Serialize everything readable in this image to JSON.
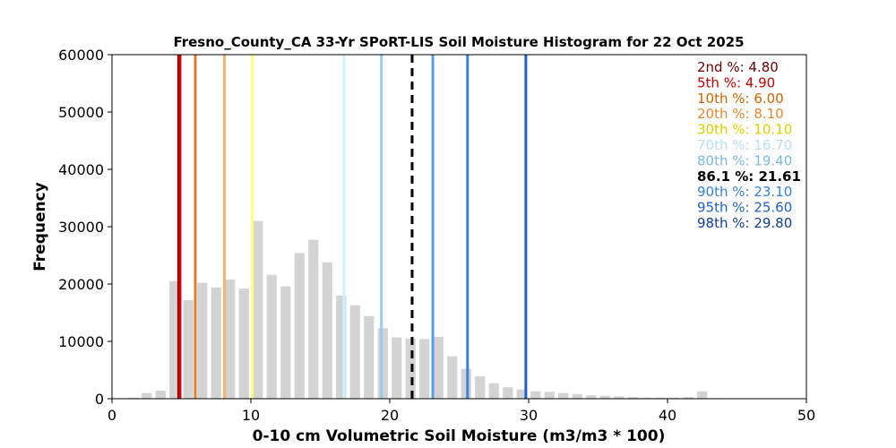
{
  "chart_data": {
    "type": "bar",
    "title": "Fresno_County_CA 33-Yr SPoRT-LIS Soil Moisture Histogram for 22 Oct 2025",
    "xlabel": "0-10 cm Volumetric Soil Moisture (m3/m3 * 100)",
    "ylabel": "Frequency",
    "xlim": [
      0,
      50
    ],
    "ylim": [
      0,
      60000
    ],
    "x_ticks": [
      "0",
      "10",
      "20",
      "30",
      "40",
      "50"
    ],
    "y_ticks": [
      "0",
      "10000",
      "20000",
      "30000",
      "40000",
      "50000",
      "60000"
    ],
    "bar_color": "#d3d3d3",
    "bins": [
      {
        "x": 1.5,
        "value": 200
      },
      {
        "x": 2.5,
        "value": 1000
      },
      {
        "x": 3.5,
        "value": 1400
      },
      {
        "x": 4.5,
        "value": 20500
      },
      {
        "x": 5.5,
        "value": 17200
      },
      {
        "x": 6.5,
        "value": 20200
      },
      {
        "x": 7.5,
        "value": 19400
      },
      {
        "x": 8.5,
        "value": 20800
      },
      {
        "x": 9.5,
        "value": 19200
      },
      {
        "x": 10.5,
        "value": 31000
      },
      {
        "x": 11.5,
        "value": 21600
      },
      {
        "x": 12.5,
        "value": 19600
      },
      {
        "x": 13.5,
        "value": 25400
      },
      {
        "x": 14.5,
        "value": 27700
      },
      {
        "x": 15.5,
        "value": 23800
      },
      {
        "x": 16.5,
        "value": 18000
      },
      {
        "x": 17.5,
        "value": 16300
      },
      {
        "x": 18.5,
        "value": 14400
      },
      {
        "x": 19.5,
        "value": 12300
      },
      {
        "x": 20.5,
        "value": 10700
      },
      {
        "x": 21.5,
        "value": 10500
      },
      {
        "x": 22.5,
        "value": 10400
      },
      {
        "x": 23.5,
        "value": 10800
      },
      {
        "x": 24.5,
        "value": 7400
      },
      {
        "x": 25.5,
        "value": 5200
      },
      {
        "x": 26.5,
        "value": 3900
      },
      {
        "x": 27.5,
        "value": 2700
      },
      {
        "x": 28.5,
        "value": 2000
      },
      {
        "x": 29.5,
        "value": 1600
      },
      {
        "x": 30.5,
        "value": 1300
      },
      {
        "x": 31.5,
        "value": 1200
      },
      {
        "x": 32.5,
        "value": 1000
      },
      {
        "x": 33.5,
        "value": 800
      },
      {
        "x": 34.5,
        "value": 600
      },
      {
        "x": 35.5,
        "value": 500
      },
      {
        "x": 36.5,
        "value": 400
      },
      {
        "x": 37.5,
        "value": 300
      },
      {
        "x": 38.5,
        "value": 200
      },
      {
        "x": 39.5,
        "value": 200
      },
      {
        "x": 40.5,
        "value": 200
      },
      {
        "x": 41.5,
        "value": 300
      },
      {
        "x": 42.5,
        "value": 1300
      },
      {
        "x": 43.5,
        "value": 100
      }
    ],
    "percentiles": [
      {
        "label": "2nd %: 4.80",
        "value": 4.8,
        "color": "#6b0000",
        "line_color": "#8b0000"
      },
      {
        "label": "5th %: 4.90",
        "value": 4.9,
        "color": "#c00000",
        "line_color": "#d40000"
      },
      {
        "label": "10th %: 6.00",
        "value": 6.0,
        "color": "#c86400",
        "line_color": "#e07b28"
      },
      {
        "label": "20th %: 8.10",
        "value": 8.1,
        "color": "#e08a30",
        "line_color": "#f5b070"
      },
      {
        "label": "30th %: 10.10",
        "value": 10.1,
        "color": "#d8d000",
        "line_color": "#ffff80"
      },
      {
        "label": "70th %: 16.70",
        "value": 16.7,
        "color": "#b8e0f0",
        "line_color": "#c8f4ff"
      },
      {
        "label": "80th %: 19.40",
        "value": 19.4,
        "color": "#7fb8e0",
        "line_color": "#9ccbea"
      },
      {
        "label": "90th %: 23.10",
        "value": 23.1,
        "color": "#3a7fd0",
        "line_color": "#5a9de0"
      },
      {
        "label": "95th %: 25.60",
        "value": 25.6,
        "color": "#1f62c0",
        "line_color": "#3b82d6"
      },
      {
        "label": "98th %: 29.80",
        "value": 29.8,
        "color": "#123f8f",
        "line_color": "#1e5fc8"
      }
    ],
    "current": {
      "label": "86.1 %: 21.61",
      "value": 21.61,
      "color": "#000000"
    }
  }
}
